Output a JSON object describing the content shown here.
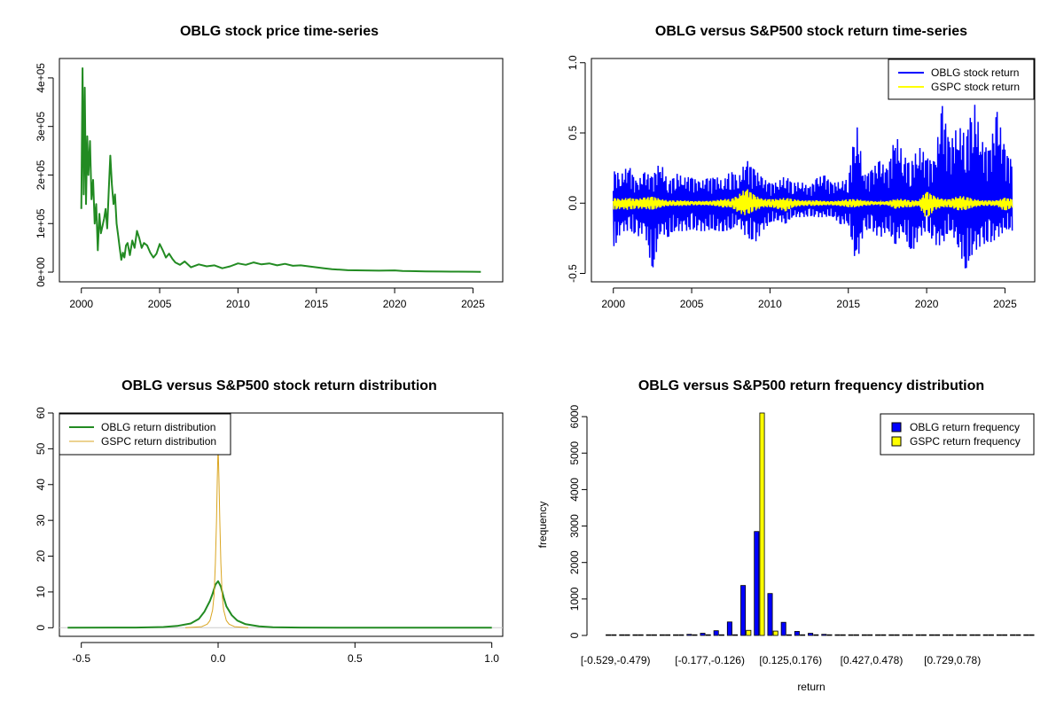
{
  "chart_data": [
    {
      "id": "price",
      "type": "line",
      "title": "OBLG stock price time-series",
      "xlabel": "",
      "ylabel": "",
      "xlim": [
        1998.6,
        2026.9
      ],
      "ylim": [
        -20000,
        440000
      ],
      "xticks": [
        2000,
        2005,
        2010,
        2015,
        2020,
        2025
      ],
      "xtick_labels": [
        "2000",
        "2005",
        "2010",
        "2015",
        "2020",
        "2025"
      ],
      "yticks": [
        0,
        100000,
        200000,
        300000,
        400000
      ],
      "ytick_labels": [
        "0e+00",
        "1e+05",
        "2e+05",
        "3e+05",
        "4e+05"
      ],
      "series": [
        {
          "name": "OBLG stock price",
          "color": "#228B22",
          "x": [
            2000.0,
            2000.08,
            2000.15,
            2000.22,
            2000.3,
            2000.38,
            2000.45,
            2000.55,
            2000.65,
            2000.75,
            2000.85,
            2000.95,
            2001.05,
            2001.15,
            2001.25,
            2001.35,
            2001.45,
            2001.55,
            2001.65,
            2001.75,
            2001.85,
            2001.95,
            2002.05,
            2002.15,
            2002.25,
            2002.35,
            2002.45,
            2002.55,
            2002.65,
            2002.75,
            2002.85,
            2002.95,
            2003.1,
            2003.25,
            2003.4,
            2003.55,
            2003.7,
            2003.85,
            2004.0,
            2004.2,
            2004.4,
            2004.6,
            2004.8,
            2005.0,
            2005.2,
            2005.4,
            2005.6,
            2005.8,
            2006.0,
            2006.3,
            2006.6,
            2007.0,
            2007.5,
            2008.0,
            2008.5,
            2009.0,
            2009.5,
            2010.0,
            2010.5,
            2011.0,
            2011.5,
            2012.0,
            2012.5,
            2013.0,
            2013.5,
            2014.0,
            2014.5,
            2015.0,
            2015.5,
            2016.0,
            2016.5,
            2017.0,
            2018.0,
            2019.0,
            2020.0,
            2020.5,
            2021.0,
            2022.0,
            2023.0,
            2024.0,
            2025.0,
            2025.5
          ],
          "y": [
            130000,
            420000,
            160000,
            380000,
            140000,
            280000,
            200000,
            270000,
            150000,
            190000,
            100000,
            140000,
            45000,
            120000,
            80000,
            95000,
            110000,
            130000,
            90000,
            170000,
            240000,
            180000,
            140000,
            160000,
            100000,
            75000,
            50000,
            25000,
            40000,
            30000,
            55000,
            60000,
            35000,
            65000,
            50000,
            85000,
            70000,
            50000,
            60000,
            55000,
            40000,
            30000,
            38000,
            58000,
            45000,
            30000,
            38000,
            28000,
            20000,
            15000,
            22000,
            10000,
            16000,
            12000,
            14000,
            8000,
            12000,
            18000,
            15000,
            20000,
            16000,
            18000,
            14000,
            17000,
            13000,
            14000,
            12000,
            10000,
            8000,
            6000,
            5000,
            4000,
            3500,
            3000,
            3500,
            2500,
            2000,
            1500,
            1200,
            1000,
            800,
            700
          ]
        }
      ]
    },
    {
      "id": "returns",
      "type": "line",
      "title": "OBLG versus S&P500 stock return time-series",
      "xlabel": "",
      "ylabel": "",
      "xlim": [
        1998.6,
        2026.9
      ],
      "ylim": [
        -0.56,
        1.03
      ],
      "xticks": [
        2000,
        2005,
        2010,
        2015,
        2020,
        2025
      ],
      "xtick_labels": [
        "2000",
        "2005",
        "2010",
        "2015",
        "2020",
        "2025"
      ],
      "yticks": [
        -0.5,
        0.0,
        0.5,
        1.0
      ],
      "ytick_labels": [
        "-0.5",
        "0.0",
        "0.5",
        "1.0"
      ],
      "legend": [
        "OBLG stock return",
        "GSPC stock return"
      ],
      "legend_position": "top-right",
      "series": [
        {
          "name": "OBLG stock return",
          "color": "#0000FF",
          "x": [
            2000.0,
            2000.5,
            2001.0,
            2001.5,
            2002.0,
            2002.5,
            2003.0,
            2003.5,
            2004.0,
            2004.5,
            2005.0,
            2005.5,
            2006.0,
            2006.5,
            2007.0,
            2007.5,
            2008.0,
            2008.5,
            2009.0,
            2009.5,
            2010.0,
            2010.5,
            2011.0,
            2011.5,
            2012.0,
            2012.5,
            2013.0,
            2013.5,
            2014.0,
            2014.5,
            2015.0,
            2015.5,
            2016.0,
            2016.5,
            2017.0,
            2017.5,
            2018.0,
            2018.5,
            2019.0,
            2019.5,
            2020.0,
            2020.5,
            2021.0,
            2021.5,
            2022.0,
            2022.5,
            2023.0,
            2023.5,
            2024.0,
            2024.5,
            2025.0,
            2025.5
          ],
          "high": [
            0.25,
            0.2,
            0.28,
            0.15,
            0.22,
            0.2,
            0.3,
            0.15,
            0.22,
            0.18,
            0.2,
            0.15,
            0.18,
            0.2,
            0.15,
            0.25,
            0.18,
            0.32,
            0.25,
            0.18,
            0.15,
            0.15,
            0.2,
            0.15,
            0.15,
            0.12,
            0.18,
            0.2,
            0.15,
            0.15,
            0.18,
            0.6,
            0.2,
            0.25,
            0.3,
            0.25,
            0.5,
            0.35,
            0.3,
            0.4,
            0.35,
            0.3,
            0.7,
            0.45,
            0.55,
            0.5,
            0.75,
            0.45,
            0.4,
            0.65,
            0.4,
            0.3
          ],
          "low": [
            -0.35,
            -0.2,
            -0.2,
            -0.25,
            -0.2,
            -0.52,
            -0.2,
            -0.25,
            -0.2,
            -0.2,
            -0.2,
            -0.2,
            -0.2,
            -0.2,
            -0.2,
            -0.2,
            -0.15,
            -0.25,
            -0.3,
            -0.2,
            -0.15,
            -0.12,
            -0.15,
            -0.1,
            -0.1,
            -0.1,
            -0.1,
            -0.1,
            -0.1,
            -0.15,
            -0.15,
            -0.45,
            -0.2,
            -0.2,
            -0.25,
            -0.2,
            -0.3,
            -0.2,
            -0.38,
            -0.25,
            -0.2,
            -0.3,
            -0.3,
            -0.2,
            -0.3,
            -0.5,
            -0.35,
            -0.3,
            -0.3,
            -0.25,
            -0.2,
            -0.2
          ]
        },
        {
          "name": "GSPC stock return",
          "color": "#FFFF00",
          "x": [
            2000.0,
            2000.5,
            2001.0,
            2001.5,
            2002.0,
            2002.5,
            2003.0,
            2003.5,
            2004.0,
            2004.5,
            2005.0,
            2005.5,
            2006.0,
            2006.5,
            2007.0,
            2007.5,
            2008.0,
            2008.5,
            2009.0,
            2009.5,
            2010.0,
            2010.5,
            2011.0,
            2011.5,
            2012.0,
            2012.5,
            2013.0,
            2013.5,
            2014.0,
            2014.5,
            2015.0,
            2015.5,
            2016.0,
            2016.5,
            2017.0,
            2017.5,
            2018.0,
            2018.5,
            2019.0,
            2019.5,
            2020.0,
            2020.5,
            2021.0,
            2021.5,
            2022.0,
            2022.5,
            2023.0,
            2023.5,
            2024.0,
            2024.5,
            2025.0,
            2025.5
          ],
          "high": [
            0.04,
            0.03,
            0.04,
            0.03,
            0.04,
            0.05,
            0.03,
            0.02,
            0.02,
            0.02,
            0.015,
            0.015,
            0.015,
            0.02,
            0.03,
            0.03,
            0.06,
            0.11,
            0.06,
            0.03,
            0.03,
            0.03,
            0.04,
            0.03,
            0.02,
            0.02,
            0.02,
            0.015,
            0.015,
            0.02,
            0.03,
            0.03,
            0.02,
            0.015,
            0.01,
            0.015,
            0.03,
            0.03,
            0.02,
            0.02,
            0.09,
            0.05,
            0.03,
            0.03,
            0.05,
            0.05,
            0.03,
            0.02,
            0.02,
            0.02,
            0.04,
            0.03
          ],
          "low": [
            -0.05,
            -0.04,
            -0.05,
            -0.04,
            -0.04,
            -0.05,
            -0.03,
            -0.02,
            -0.02,
            -0.02,
            -0.015,
            -0.015,
            -0.015,
            -0.02,
            -0.03,
            -0.03,
            -0.07,
            -0.09,
            -0.06,
            -0.03,
            -0.03,
            -0.04,
            -0.06,
            -0.03,
            -0.02,
            -0.02,
            -0.02,
            -0.015,
            -0.015,
            -0.02,
            -0.03,
            -0.03,
            -0.02,
            -0.015,
            -0.01,
            -0.015,
            -0.04,
            -0.03,
            -0.03,
            -0.02,
            -0.12,
            -0.05,
            -0.03,
            -0.03,
            -0.05,
            -0.05,
            -0.03,
            -0.02,
            -0.02,
            -0.02,
            -0.06,
            -0.03
          ]
        }
      ]
    },
    {
      "id": "density",
      "type": "line",
      "title": "OBLG versus S&P500 stock return distribution",
      "xlabel": "",
      "ylabel": "",
      "xlim": [
        -0.58,
        1.04
      ],
      "ylim": [
        -2.4,
        60
      ],
      "xticks": [
        -0.5,
        0.0,
        0.5,
        1.0
      ],
      "xtick_labels": [
        "-0.5",
        "0.0",
        "0.5",
        "1.0"
      ],
      "yticks": [
        0,
        10,
        20,
        30,
        40,
        50,
        60
      ],
      "ytick_labels": [
        "0",
        "10",
        "20",
        "30",
        "40",
        "50",
        "60"
      ],
      "legend": [
        "OBLG return distribution",
        "GSPC return distribution"
      ],
      "legend_position": "top-left",
      "series": [
        {
          "name": "OBLG return distribution",
          "color": "#228B22",
          "x": [
            -0.55,
            -0.3,
            -0.2,
            -0.15,
            -0.1,
            -0.07,
            -0.05,
            -0.03,
            -0.02,
            -0.01,
            0.0,
            0.01,
            0.02,
            0.03,
            0.05,
            0.07,
            0.1,
            0.15,
            0.2,
            0.3,
            0.5,
            1.0
          ],
          "y": [
            0,
            0.05,
            0.2,
            0.5,
            1.2,
            2.5,
            4.5,
            7.5,
            9.5,
            12.0,
            13.0,
            11.5,
            8.5,
            6.0,
            3.5,
            2.0,
            1.0,
            0.4,
            0.15,
            0.05,
            0,
            0
          ]
        },
        {
          "name": "GSPC return distribution",
          "color": "#DAA520",
          "x": [
            -0.12,
            -0.06,
            -0.04,
            -0.03,
            -0.02,
            -0.015,
            -0.01,
            -0.006,
            -0.003,
            -0.001,
            0.0,
            0.001,
            0.003,
            0.006,
            0.01,
            0.015,
            0.02,
            0.03,
            0.04,
            0.06,
            0.11
          ],
          "y": [
            0,
            0.3,
            1.0,
            2.0,
            5.0,
            9.0,
            18.0,
            30.0,
            42.0,
            48.0,
            50.0,
            48.0,
            42.0,
            30.0,
            18.0,
            9.0,
            5.0,
            2.0,
            1.0,
            0.3,
            0
          ]
        }
      ]
    },
    {
      "id": "histogram",
      "type": "bar",
      "title": "OBLG versus S&P500 return frequency distribution",
      "xlabel": "return",
      "ylabel": "frequency",
      "ylim": [
        0,
        6100
      ],
      "yticks": [
        0,
        1000,
        2000,
        3000,
        4000,
        5000,
        6000
      ],
      "ytick_labels": [
        "0",
        "1000",
        "2000",
        "3000",
        "4000",
        "5000",
        "6000"
      ],
      "x_tick_labels": [
        {
          "index": 0,
          "label": "[-0.529,-0.479)"
        },
        {
          "index": 7,
          "label": "[-0.177,-0.126)"
        },
        {
          "index": 13,
          "label": "[0.125,0.176)"
        },
        {
          "index": 19,
          "label": "[0.427,0.478)"
        },
        {
          "index": 25,
          "label": "[0.729,0.78)"
        }
      ],
      "legend": [
        "OBLG return frequency",
        "GSPC return frequency"
      ],
      "legend_position": "top-right",
      "series": [
        {
          "name": "OBLG return frequency",
          "color": "#0000FF",
          "values": [
            2,
            0,
            1,
            2,
            5,
            10,
            30,
            60,
            130,
            370,
            1370,
            2850,
            1150,
            360,
            110,
            60,
            30,
            20,
            15,
            10,
            10,
            5,
            5,
            2,
            2,
            1,
            1,
            1,
            1,
            1,
            1,
            1
          ]
        },
        {
          "name": "GSPC return frequency",
          "color": "#FFFF00",
          "values": [
            0,
            0,
            0,
            0,
            0,
            0,
            0,
            0,
            0,
            0,
            140,
            6200,
            120,
            0,
            0,
            0,
            0,
            0,
            0,
            0,
            0,
            0,
            0,
            0,
            0,
            0,
            0,
            0,
            0,
            0,
            0,
            0
          ]
        }
      ]
    }
  ]
}
